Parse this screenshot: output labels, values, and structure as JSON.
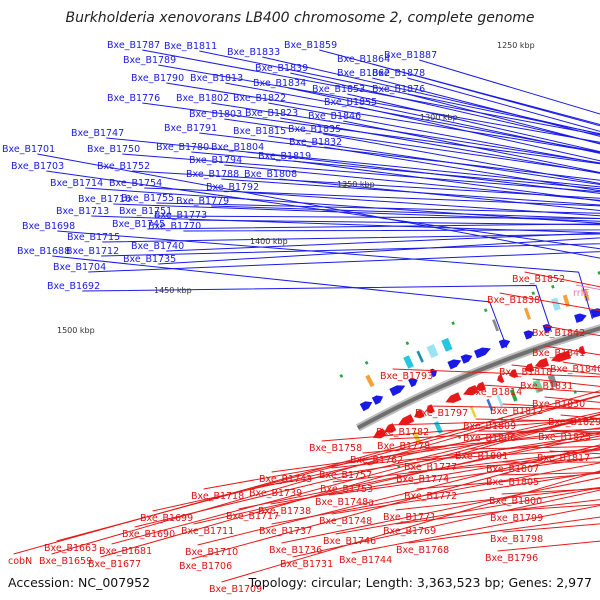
{
  "title": "Burkholderia xenovorans LB400 chromosome 2, complete genome",
  "footer": {
    "accession": "Accession: NC_007952",
    "topology": "Topology: circular; Length: 3,363,523 bp; Genes: 2,977"
  },
  "colors": {
    "forward": "#1a1ae6",
    "reverse": "#e61a1a",
    "rrna": "#e87ab8",
    "backbone": "#777777",
    "label_forward": "#1a1ae6",
    "label_reverse": "#e01010",
    "label_rrna": "#e07ab0"
  },
  "kbp_ticks": [
    "1250 kbp",
    "1300 kbp",
    "1350 kbp",
    "1400 kbp",
    "1450 kbp",
    "1500 kbp"
  ],
  "forward_genes": [
    "Bxe_B1887",
    "Bxe_B1878",
    "Bxe_B1876",
    "Bxe_B1864",
    "Bxe_B1862",
    "Bxe_B1859",
    "Bxe_B1855",
    "Bxe_B1853",
    "Bxe_B1846",
    "Bxe_B1839",
    "Bxe_B1835",
    "Bxe_B1834",
    "Bxe_B1833",
    "Bxe_B1832",
    "Bxe_B1823",
    "Bxe_B1822",
    "Bxe_B1819",
    "Bxe_B1815",
    "Bxe_B1813",
    "Bxe_B1811",
    "Bxe_B1808",
    "Bxe_B1804",
    "Bxe_B1803",
    "Bxe_B1802",
    "Bxe_B1794",
    "Bxe_B1792",
    "Bxe_B1791",
    "Bxe_B1790",
    "Bxe_B1789",
    "Bxe_B1788",
    "Bxe_B1787",
    "Bxe_B1780",
    "Bxe_B1779",
    "Bxe_B1776",
    "Bxe_B1773",
    "Bxe_B1770",
    "Bxe_B1755",
    "Bxe_B1754",
    "Bxe_B1752",
    "Bxe_B1751",
    "Bxe_B1750",
    "Bxe_B1747",
    "Bxe_B1745",
    "Bxe_B1740",
    "Bxe_B1735",
    "Bxe_B1716",
    "Bxe_B1715",
    "Bxe_B1714",
    "Bxe_B1713",
    "Bxe_B1712",
    "Bxe_B1704",
    "Bxe_B1703",
    "Bxe_B1701",
    "Bxe_B1698",
    "Bxe_B1692",
    "Bxe_B1688"
  ],
  "reverse_genes": [
    "Bxe_B1852",
    "Bxe_B1842",
    "Bxe_B1841",
    "Bxe_B1840",
    "Bxe_B1838",
    "Bxe_B1831",
    "Bxe_B1830",
    "Bxe_B1829",
    "Bxe_B1825",
    "Bxe_B1818",
    "Bxe_B1817",
    "Bxe_B1814",
    "Bxe_B1812",
    "Bxe_B1809",
    "Bxe_B1807",
    "Bxe_B1806",
    "Bxe_B1805",
    "Bxe_B1801",
    "Bxe_B1800",
    "Bxe_B1799",
    "Bxe_B1798",
    "Bxe_B1797",
    "Bxe_B1796",
    "Bxe_B1793",
    "Bxe_B1782",
    "Bxe_B1778",
    "Bxe_B1777",
    "Bxe_B1774",
    "Bxe_B1772",
    "Bxe_B1771",
    "Bxe_B1769",
    "Bxe_B1768",
    "Bxe_B1762",
    "Bxe_B1758",
    "Bxe_B1757",
    "Bxe_B1753",
    "Bxe_B1748a",
    "Bxe_B1748",
    "Bxe_B1746",
    "Bxe_B1744",
    "Bxe_B1743",
    "Bxe_B1739",
    "Bxe_B1738",
    "Bxe_B1737",
    "Bxe_B1736",
    "Bxe_B1731",
    "Bxe_B1718",
    "Bxe_B1717",
    "Bxe_B1711",
    "Bxe_B1710",
    "Bxe_B1709",
    "Bxe_B1706",
    "Bxe_B1699",
    "Bxe_B1690",
    "Bxe_B1681",
    "Bxe_B1677",
    "Bxe_B1663",
    "Bxe_B1659",
    "cobN"
  ],
  "rrna_genes": [
    "rrlE"
  ]
}
